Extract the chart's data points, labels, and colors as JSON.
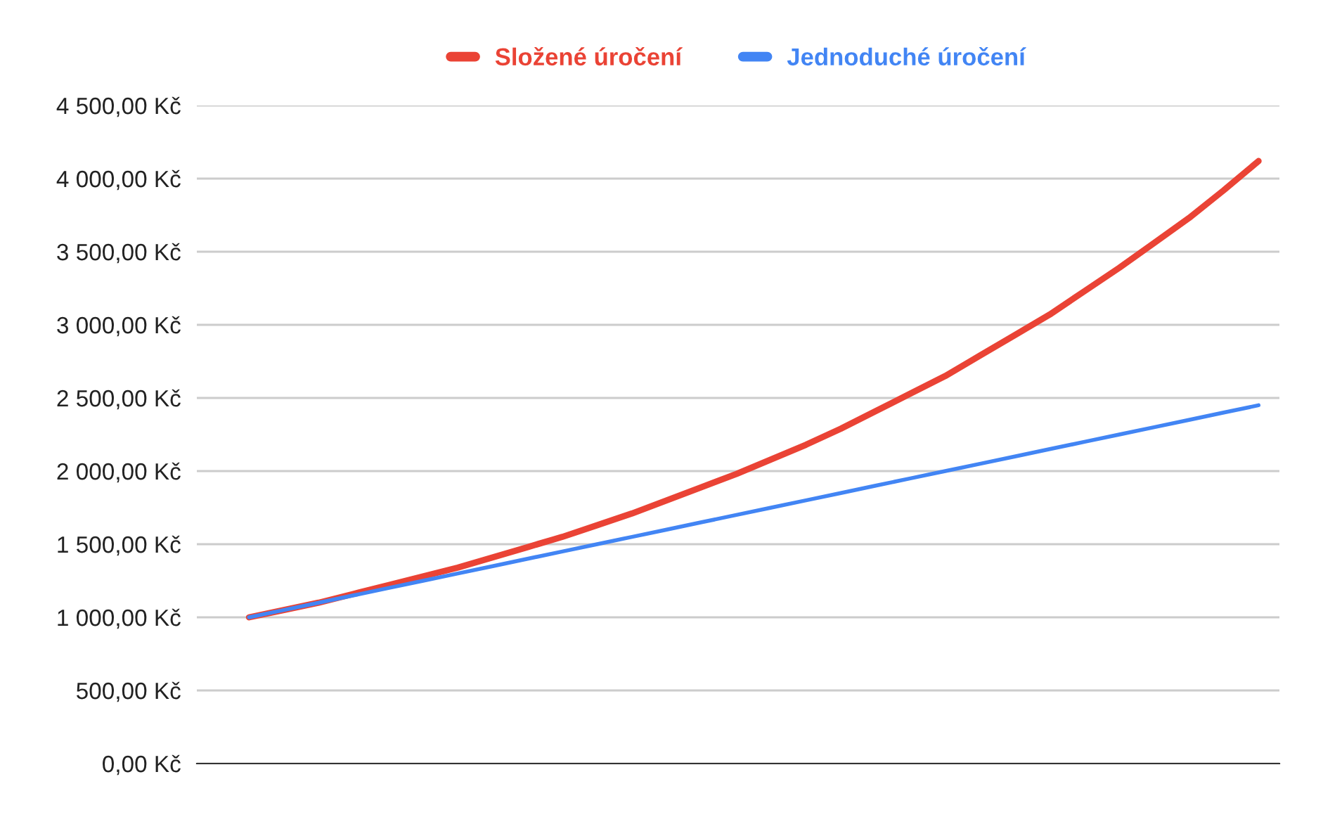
{
  "chart_data": {
    "type": "line",
    "categories": [
      null,
      null,
      null,
      null,
      null,
      null,
      null,
      null,
      null,
      null,
      null,
      null,
      null,
      null,
      null,
      null,
      null,
      null,
      null,
      null,
      null,
      null,
      null,
      null,
      null,
      null,
      null,
      null,
      null,
      null
    ],
    "series": [
      {
        "name": "Složené úročení",
        "color": "#ea4335",
        "values": [
          1000,
          1050,
          1100,
          1160,
          1220,
          1280,
          1340,
          1410,
          1480,
          1550,
          1630,
          1710,
          1800,
          1890,
          1980,
          2080,
          2180,
          2290,
          2410,
          2530,
          2650,
          2790,
          2930,
          3070,
          3230,
          3390,
          3560,
          3730,
          3920,
          4120
        ]
      },
      {
        "name": "Jednoduché úročení",
        "color": "#4285f4",
        "values": [
          1000,
          1050,
          1100,
          1150,
          1200,
          1250,
          1300,
          1350,
          1400,
          1450,
          1500,
          1550,
          1600,
          1650,
          1700,
          1750,
          1800,
          1850,
          1900,
          1950,
          2000,
          2050,
          2100,
          2150,
          2200,
          2250,
          2300,
          2350,
          2400,
          2450
        ]
      }
    ],
    "ylim": [
      0,
      4500
    ],
    "yticks": [
      {
        "value": 0,
        "label": "0,00 Kč"
      },
      {
        "value": 500,
        "label": "500,00 Kč"
      },
      {
        "value": 1000,
        "label": "1 000,00 Kč"
      },
      {
        "value": 1500,
        "label": "1 500,00 Kč"
      },
      {
        "value": 2000,
        "label": "2 000,00 Kč"
      },
      {
        "value": 2500,
        "label": "2 500,00 Kč"
      },
      {
        "value": 3000,
        "label": "3 000,00 Kč"
      },
      {
        "value": 3500,
        "label": "3 500,00 Kč"
      },
      {
        "value": 4000,
        "label": "4 000,00 Kč"
      },
      {
        "value": 4500,
        "label": "4 500,00 Kč"
      }
    ],
    "grid": "y",
    "legend": "top",
    "tick_labels": "y",
    "marker": "none",
    "line_style": "solid"
  }
}
